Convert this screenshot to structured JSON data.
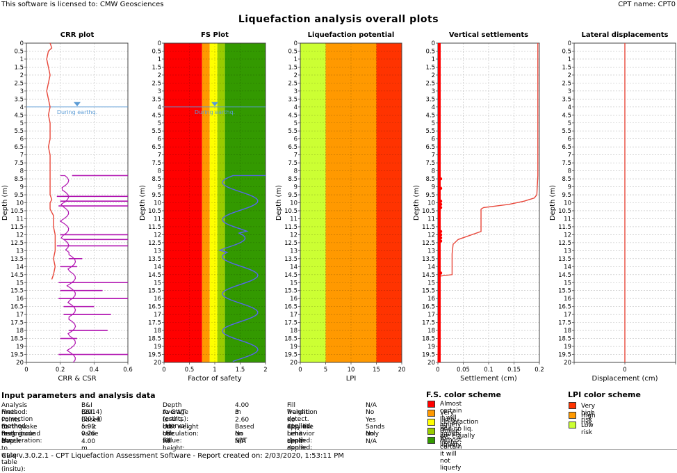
{
  "header": {
    "license": "This software is licensed to: CMW Geosciences",
    "cpt_name": "CPT name: CPT0"
  },
  "title": "Liquefaction analysis overall plots",
  "chart_data": [
    {
      "type": "line",
      "title": "CRR plot",
      "xlabel": "CRR & CSR",
      "ylabel": "Depth (m)",
      "xlim": [
        0,
        0.6
      ],
      "ylim": [
        20,
        0
      ],
      "xticks": [
        "0",
        "0.2",
        "0.4",
        "0.6"
      ],
      "yticks": [
        "0",
        "0.5",
        "1",
        "1.5",
        "2",
        "2.5",
        "3",
        "3.5",
        "4",
        "4.5",
        "5",
        "5.5",
        "6",
        "6.5",
        "7",
        "7.5",
        "8",
        "8.5",
        "9",
        "9.5",
        "10",
        "10.5",
        "11",
        "11.5",
        "12",
        "12.5",
        "13",
        "13.5",
        "14",
        "14.5",
        "15",
        "15.5",
        "16",
        "16.5",
        "17",
        "17.5",
        "18",
        "18.5",
        "19",
        "19.5",
        "20"
      ],
      "grid": true,
      "water_table_label": "During earthq.",
      "water_table_depth": 4,
      "series": [
        {
          "color": "#e8473a",
          "x": [
            0.14,
            0.15,
            0.13,
            0.12,
            0.13,
            0.14,
            0.13,
            0.12,
            0.13,
            0.14,
            0.13,
            0.14,
            0.14,
            0.14,
            0.13,
            0.14,
            0.14,
            0.14,
            0.14,
            0.14,
            0.14,
            0.15,
            0.14,
            0.14,
            0.14,
            0.15,
            0.16,
            0.16,
            0.16,
            0.16,
            0.17,
            0.17,
            0.17,
            0.16,
            0.17,
            0.16,
            0.15,
            0.17,
            0.12,
            0.11,
            0.12,
            0.17,
            0.18,
            0.17,
            0.16,
            0.15,
            0.16,
            0.15,
            0.16,
            0.14,
            0.13,
            0.12,
            0.14,
            0.13,
            0.12,
            0.13,
            0.14,
            0.13,
            0.12,
            0.13,
            0.14,
            0.15,
            0.14,
            0.14,
            0.15,
            0.14,
            0.13,
            0.14,
            0.15,
            0.13,
            0.14,
            0.12,
            0.14,
            0.13,
            0.15
          ],
          "y": [
            0,
            0.3,
            0.5,
            1,
            1.5,
            2,
            2.5,
            3,
            3.5,
            4,
            4.5,
            5,
            5.5,
            6,
            6.5,
            7,
            7.5,
            8,
            8.5,
            9,
            9.5,
            9.8,
            10,
            10.2,
            10.4,
            10.6,
            10.8,
            11,
            11.2,
            11.5,
            12,
            12.5,
            13,
            13.5,
            14,
            14.5,
            14.8,
            9.5,
            10.1,
            10.4,
            10.7,
            11,
            11.5,
            12,
            12.5,
            13,
            13.5,
            14,
            14.5,
            15,
            15.5,
            16,
            16.5,
            17,
            17.5,
            18,
            18.5,
            19,
            19.5,
            20,
            15.2,
            15.4,
            15.6,
            15.8,
            16,
            16.2,
            16.4,
            16.6,
            16.8,
            17,
            17.2,
            17.4,
            17.6,
            17.8,
            18
          ]
        }
      ]
    },
    {
      "type": "line",
      "title": "FS Plot",
      "xlabel": "Factor of safety",
      "ylabel": "Depth (m)",
      "xlim": [
        0,
        2
      ],
      "ylim": [
        20,
        0
      ],
      "xticks": [
        "0",
        "0.5",
        "1",
        "1.5",
        "2"
      ],
      "grid": true,
      "water_table_label": "During earthq.",
      "water_table_depth": 4,
      "bands": [
        {
          "from": 0,
          "to": 0.75,
          "color": "#ff0000"
        },
        {
          "from": 0.75,
          "to": 0.9,
          "color": "#ff9900"
        },
        {
          "from": 0.9,
          "to": 1.05,
          "color": "#ffff00"
        },
        {
          "from": 1.05,
          "to": 1.2,
          "color": "#99cc00"
        },
        {
          "from": 1.2,
          "to": 2,
          "color": "#339900"
        }
      ]
    },
    {
      "type": "area",
      "title": "Liquefaction potential",
      "xlabel": "LPI",
      "ylabel": "Depth (m)",
      "xlim": [
        0,
        20
      ],
      "ylim": [
        20,
        0
      ],
      "xticks": [
        "0",
        "5",
        "10",
        "15",
        "20"
      ],
      "grid": true,
      "bands": [
        {
          "from": 0,
          "to": 5,
          "color": "#ccff33"
        },
        {
          "from": 5,
          "to": 15,
          "color": "#ff9900"
        },
        {
          "from": 15,
          "to": 20,
          "color": "#ff3300"
        }
      ]
    },
    {
      "type": "line",
      "title": "Vertical settlements",
      "xlabel": "Settlement (cm)",
      "ylabel": "Depth (m)",
      "xlim": [
        0,
        0.2
      ],
      "ylim": [
        20,
        0
      ],
      "xticks": [
        "0",
        "0.05",
        "0.1",
        "0.15",
        "0.2"
      ],
      "grid": true,
      "series": [
        {
          "color": "#e8473a",
          "x": [
            0.197,
            0.197,
            0.195,
            0.19,
            0.17,
            0.14,
            0.09,
            0.085,
            0.085,
            0.04,
            0.03,
            0.028,
            0.028,
            0.003,
            0.001,
            0
          ],
          "y": [
            0,
            8.3,
            9.5,
            9.7,
            9.9,
            10.1,
            10.3,
            10.4,
            11.8,
            12.3,
            12.6,
            13.2,
            14.5,
            14.6,
            16,
            20
          ]
        }
      ]
    },
    {
      "type": "line",
      "title": "Lateral displacements",
      "xlabel": "Displacement (cm)",
      "ylabel": "Depth (m)",
      "xlim": [
        -1,
        1
      ],
      "ylim": [
        20,
        0
      ],
      "xticks": [
        "",
        "0",
        ""
      ],
      "grid": true,
      "series": [
        {
          "color": "#e8473a",
          "x": [
            0,
            0
          ],
          "y": [
            0,
            20
          ]
        }
      ]
    }
  ],
  "input_params": {
    "heading": "Input parameters and analysis data",
    "col1": [
      {
        "label": "Analysis method:",
        "value": "B&I (2014)"
      },
      {
        "label": "Fines correction method:",
        "value": "B&I (2014)"
      },
      {
        "label": "Points to test:",
        "value": "Based on Ic value"
      },
      {
        "label": "Earthquake magnitude Mw:",
        "value": "5.90"
      },
      {
        "label": "Peak ground acceleration:",
        "value": "0.26"
      },
      {
        "label": "Depth to water table (insitu):",
        "value": "4.00 m"
      }
    ],
    "col2": [
      {
        "label": "Depth to GWT (erthq.):",
        "value": "4.00 m"
      },
      {
        "label": "Average results interval:",
        "value": "3"
      },
      {
        "label": "Ic cut-off value:",
        "value": "2.60"
      },
      {
        "label": "Unit weight calculation:",
        "value": "Based on SBT"
      },
      {
        "label": "Use fill:",
        "value": "No"
      },
      {
        "label": "Fill height:",
        "value": "N/A"
      }
    ],
    "col3": [
      {
        "label": "Fill weight:",
        "value": "N/A"
      },
      {
        "label": "Transition detect. applied:",
        "value": "No"
      },
      {
        "label": "Kσ applied:",
        "value": "Yes"
      },
      {
        "label": "Clay like behavior applied:",
        "value": "Sands only"
      },
      {
        "label": "Limit depth applied:",
        "value": "No"
      },
      {
        "label": "Limit depth:",
        "value": "N/A"
      }
    ]
  },
  "fs_legend": {
    "heading": "F.S. color scheme",
    "items": [
      {
        "label": "Almost certain it will liquefy",
        "color": "#ff0000"
      },
      {
        "label": "Very likely to liquefy",
        "color": "#ff9900"
      },
      {
        "label": "Liquefaction and no liq. are equally likely",
        "color": "#ffff00"
      },
      {
        "label": "Unlike to liquefy",
        "color": "#99cc00"
      },
      {
        "label": "Almost certain it will not liquefy",
        "color": "#339900"
      }
    ]
  },
  "lpi_legend": {
    "heading": "LPI color scheme",
    "items": [
      {
        "label": "Very high risk",
        "color": "#ff3300"
      },
      {
        "label": "High risk",
        "color": "#ff9900"
      },
      {
        "label": "Low risk",
        "color": "#ccff33"
      }
    ]
  },
  "footer": "CLiq v.3.0.2.1 - CPT Liquefaction Assessment Software - Report created on: 2/03/2020, 1:53:11 PM"
}
